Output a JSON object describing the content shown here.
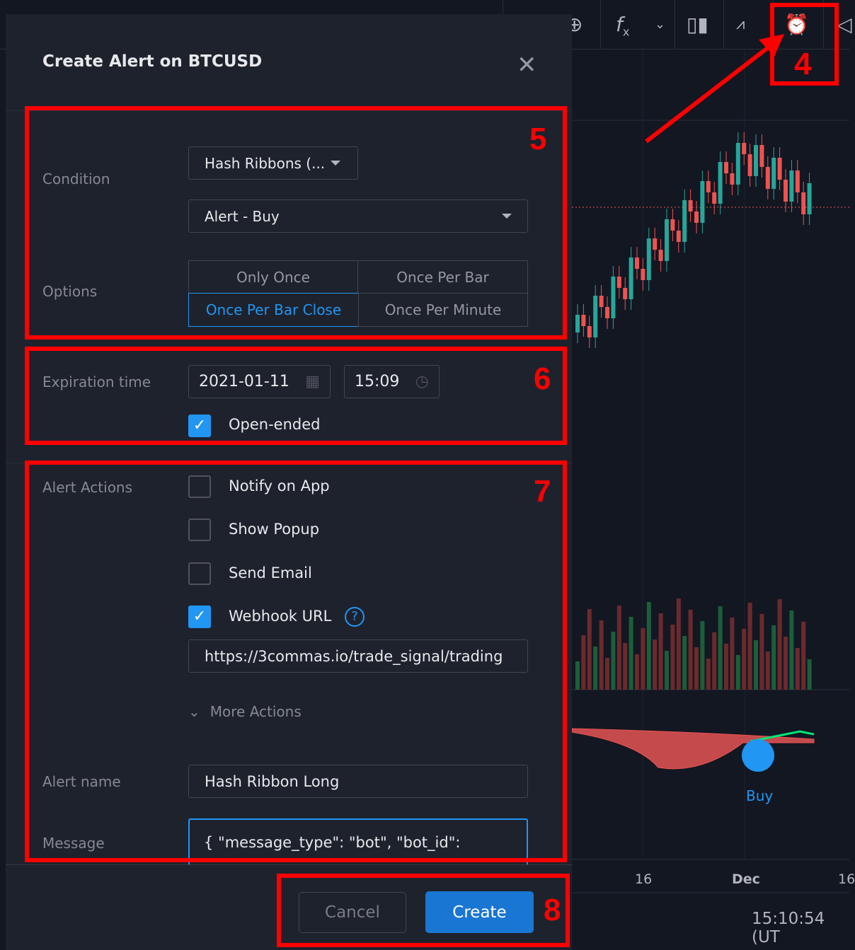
{
  "toolbar": {
    "icons": [
      "plus-circle-icon",
      "indicators-fx-icon",
      "chevron-down-icon",
      "bar-chart-icon",
      "compare-icon",
      "alarm-plus-icon",
      "replay-icon"
    ]
  },
  "dialog": {
    "title": "Create Alert on BTCUSD",
    "condition": {
      "label": "Condition",
      "indicator": "Hash Ribbons (...",
      "signal": "Alert - Buy"
    },
    "options": {
      "label": "Options",
      "items": [
        "Only Once",
        "Once Per Bar",
        "Once Per Bar Close",
        "Once Per Minute"
      ],
      "selected": "Once Per Bar Close"
    },
    "expiration": {
      "label": "Expiration time",
      "date": "2021-01-11",
      "time": "15:09",
      "open_ended_label": "Open-ended",
      "open_ended": true
    },
    "actions": {
      "label": "Alert Actions",
      "items": [
        {
          "label": "Notify on App",
          "checked": false
        },
        {
          "label": "Show Popup",
          "checked": false
        },
        {
          "label": "Send Email",
          "checked": false
        },
        {
          "label": "Webhook URL",
          "checked": true
        }
      ],
      "webhook_url": "https://3commas.io/trade_signal/trading",
      "more_actions": "More Actions"
    },
    "alert_name": {
      "label": "Alert name",
      "value": "Hash Ribbon Long"
    },
    "message": {
      "label": "Message",
      "value": "{  \"message_type\": \"bot\",  \"bot_id\":"
    },
    "cancel": "Cancel",
    "create": "Create"
  },
  "chart": {
    "x_ticks": [
      "16",
      "Dec",
      "16"
    ],
    "signal_label": "Buy",
    "clock": "15:10:54 (UT"
  },
  "annotations": [
    "4",
    "5",
    "6",
    "7",
    "8"
  ],
  "colors": {
    "accent": "#2196f3",
    "annotation": "#ff0000",
    "up": "#26a69a",
    "down": "#ef5350"
  }
}
